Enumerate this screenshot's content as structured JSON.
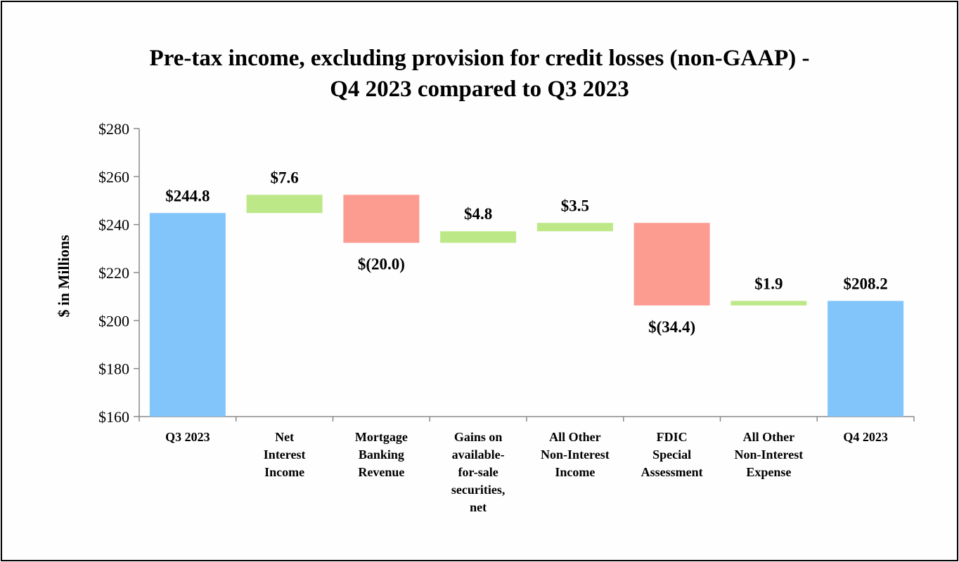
{
  "chart_data": {
    "type": "bar",
    "subtype": "waterfall",
    "title_line1": "Pre-tax income, excluding provision for credit losses (non-GAAP) -",
    "title_line2": "Q4 2023 compared to Q3 2023",
    "ylabel": "$ in Millions",
    "xlabel": "",
    "ylim": [
      160,
      280
    ],
    "yticks": [
      160,
      180,
      200,
      220,
      240,
      260,
      280
    ],
    "ytick_labels": [
      "$160",
      "$180",
      "$200",
      "$220",
      "$240",
      "$260",
      "$280"
    ],
    "categories": [
      [
        "Q3 2023"
      ],
      [
        "Net",
        "Interest",
        "Income"
      ],
      [
        "Mortgage",
        "Banking",
        "Revenue"
      ],
      [
        "Gains on",
        "available-",
        "for-sale",
        "securities,",
        "net"
      ],
      [
        "All Other",
        "Non-Interest",
        "Income"
      ],
      [
        "FDIC",
        "Special",
        "Assessment"
      ],
      [
        "All Other",
        "Non-Interest",
        "Expense"
      ],
      [
        "Q4 2023"
      ]
    ],
    "values": [
      244.8,
      7.6,
      -20.0,
      4.8,
      3.5,
      -34.4,
      1.9,
      208.2
    ],
    "kinds": [
      "total",
      "delta",
      "delta",
      "delta",
      "delta",
      "delta",
      "delta",
      "total"
    ],
    "data_labels": [
      "$244.8",
      "$7.6",
      "$(20.0)",
      "$4.8",
      "$3.5",
      "$(34.4)",
      "$1.9",
      "$208.2"
    ],
    "grid": false,
    "legend": "none",
    "colors": {
      "total": "#82c5fb",
      "increase": "#bde888",
      "decrease": "#fc9b90"
    }
  }
}
